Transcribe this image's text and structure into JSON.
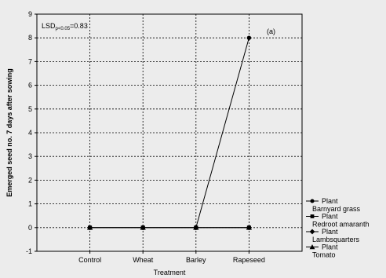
{
  "chart_data": {
    "type": "line",
    "categories": [
      "Control",
      "Wheat",
      "Barley",
      "Rapeseed"
    ],
    "series": [
      {
        "name": "Plant Barnyard grass",
        "name_lines": [
          "Plant",
          "Barnyard grass"
        ],
        "marker": "circle",
        "values": [
          0,
          0,
          0,
          8
        ]
      },
      {
        "name": "Plant Redroot amaranth",
        "name_lines": [
          "Plant",
          "Redroot amaranth"
        ],
        "marker": "square",
        "values": [
          0,
          0,
          0,
          0
        ]
      },
      {
        "name": "Plant Lambsquarters",
        "name_lines": [
          "Plant",
          "Lambsquarters"
        ],
        "marker": "diamond",
        "values": [
          0,
          0,
          0,
          0
        ]
      },
      {
        "name": "Plant Tomato",
        "name_lines": [
          "Plant",
          "Tomato"
        ],
        "marker": "triangle",
        "values": [
          0,
          0,
          0,
          0
        ]
      }
    ],
    "xlabel": "Treatment",
    "ylabel": "Emerged seed no. 7 days after sowing",
    "ylim": [
      -1,
      9
    ],
    "yticks": [
      -1,
      0,
      1,
      2,
      3,
      4,
      5,
      6,
      7,
      8,
      9
    ],
    "grid": true,
    "legend": "right",
    "annotations": {
      "lsd_prefix": "LSD",
      "lsd_subscript": "p<0.05",
      "lsd_value": "=0.83",
      "panel": "(a)"
    },
    "colors": {
      "line": "#000000",
      "background": "#ececec"
    }
  }
}
